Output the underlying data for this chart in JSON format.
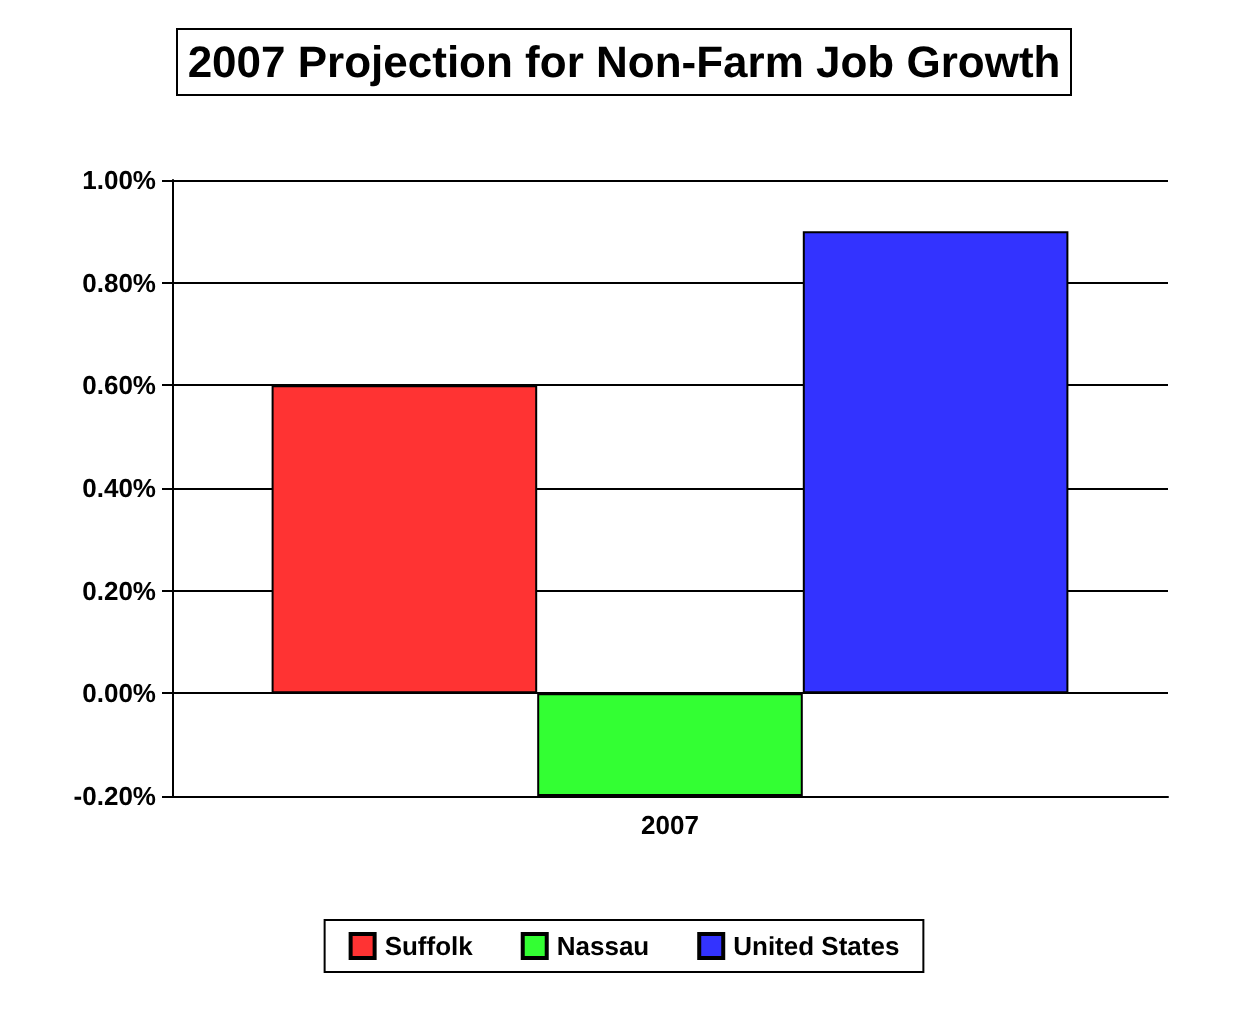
{
  "chart_data": {
    "type": "bar",
    "title": "2007 Projection for Non-Farm Job Growth",
    "categories": [
      "2007"
    ],
    "series": [
      {
        "name": "Suffolk",
        "color": "#ff3333",
        "values": [
          0.6
        ]
      },
      {
        "name": "Nassau",
        "color": "#33ff33",
        "values": [
          -0.2
        ]
      },
      {
        "name": "United States",
        "color": "#3333ff",
        "values": [
          0.9
        ]
      }
    ],
    "ylim": [
      -0.2,
      1.0
    ],
    "yticks": [
      {
        "value": -0.2,
        "label": "-0.20%"
      },
      {
        "value": 0,
        "label": "0.00%"
      },
      {
        "value": 0.2,
        "label": "0.20%"
      },
      {
        "value": 0.4,
        "label": "0.40%"
      },
      {
        "value": 0.6,
        "label": "0.60%"
      },
      {
        "value": 0.8,
        "label": "0.80%"
      },
      {
        "value": 1.0,
        "label": "1.00%"
      }
    ],
    "grid": "y",
    "legend": "bottom"
  }
}
